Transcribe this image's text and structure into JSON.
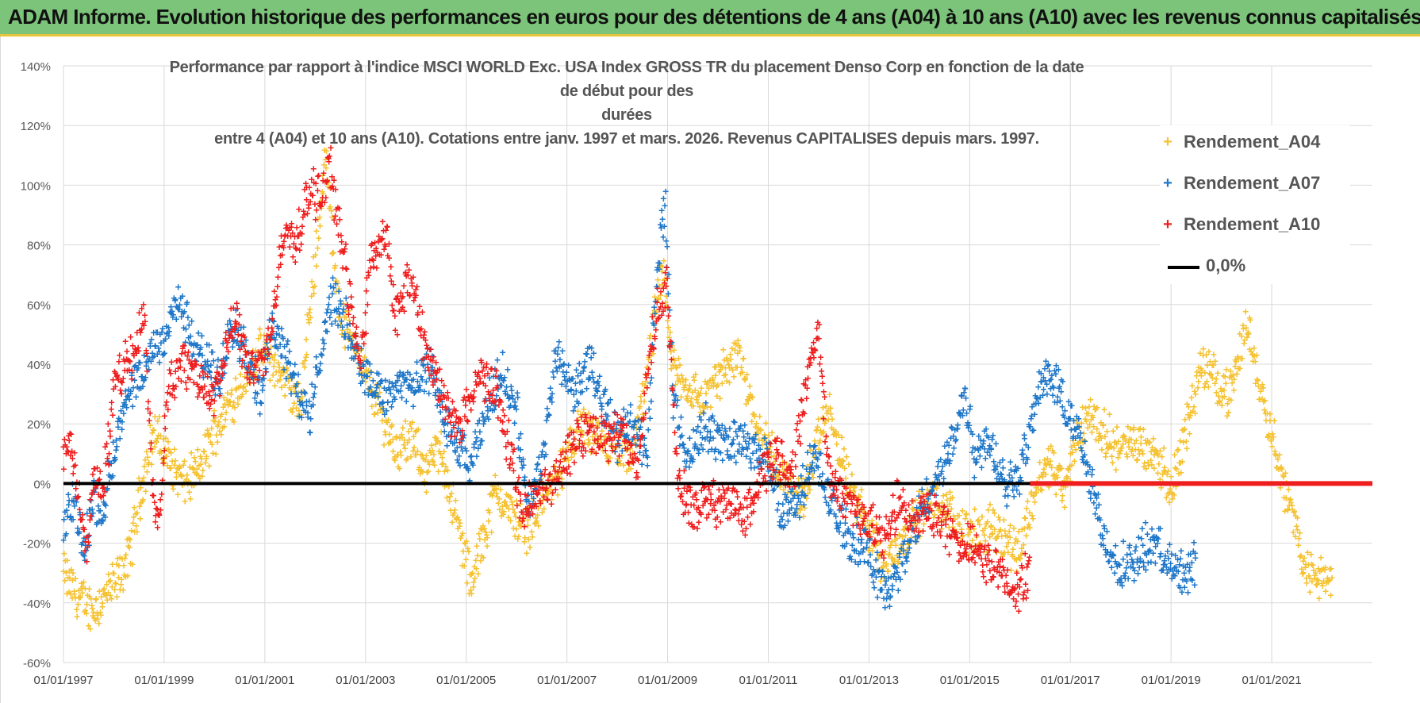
{
  "banner": {
    "title": "ADAM Informe. Evolution historique des performances en euros pour des détentions de 4 ans (A04) à 10 ans (A10) avec les revenus connus capitalisés"
  },
  "colors": {
    "A04": "#f5c232",
    "A07": "#1f77c8",
    "A10": "#ef1e1e",
    "zero": "#000000",
    "grid": "#d9d9d9",
    "banner": "#7cc47a"
  },
  "chart_data": {
    "type": "scatter",
    "title_lines": [
      "Performance par rapport à l'indice MSCI WORLD Exc. USA Index GROSS TR  du placement Denso Corp en fonction de la date de début pour des",
      "durées",
      "entre 4 (A04) et 10 ans (A10).  Cotations entre janv. 1997 et mars. 2026.  Revenus CAPITALISES depuis mars. 1997."
    ],
    "x_start": 1997.0,
    "x_end": 2023.0,
    "xlim": [
      1997.0,
      2023.0
    ],
    "ylim": [
      -60,
      140
    ],
    "x_ticks": [
      1997,
      1999,
      2001,
      2003,
      2005,
      2007,
      2009,
      2011,
      2013,
      2015,
      2017,
      2019,
      2021
    ],
    "x_tick_labels": [
      "01/01/1997",
      "01/01/1999",
      "01/01/2001",
      "01/01/2003",
      "01/01/2005",
      "01/01/2007",
      "01/01/2009",
      "01/01/2011",
      "01/01/2013",
      "01/01/2015",
      "01/01/2017",
      "01/01/2019",
      "01/01/2021"
    ],
    "y_ticks": [
      -60,
      -40,
      -20,
      0,
      20,
      40,
      60,
      80,
      100,
      120,
      140
    ],
    "y_tick_labels": [
      "-60%",
      "-40%",
      "-20%",
      "0%",
      "20%",
      "40%",
      "60%",
      "80%",
      "100%",
      "120%",
      "140%"
    ],
    "grid": true,
    "legend_position": "top-right",
    "reference_line": {
      "name": "0,0%",
      "y": 0
    },
    "series": [
      {
        "name": "Rendement_A04",
        "marker": "+",
        "x_end": 2022.2,
        "points": [
          [
            1997.0,
            -30
          ],
          [
            1997.3,
            -38
          ],
          [
            1997.6,
            -42
          ],
          [
            1998.0,
            -34
          ],
          [
            1998.3,
            -25
          ],
          [
            1998.5,
            -5
          ],
          [
            1998.8,
            18
          ],
          [
            1999.1,
            8
          ],
          [
            1999.4,
            0
          ],
          [
            1999.7,
            5
          ],
          [
            2000.0,
            18
          ],
          [
            2000.4,
            30
          ],
          [
            2000.8,
            42
          ],
          [
            2001.0,
            45
          ],
          [
            2001.4,
            35
          ],
          [
            2001.7,
            25
          ],
          [
            2002.0,
            75
          ],
          [
            2002.2,
            110
          ],
          [
            2002.5,
            55
          ],
          [
            2002.8,
            48
          ],
          [
            2003.0,
            35
          ],
          [
            2003.3,
            25
          ],
          [
            2003.6,
            12
          ],
          [
            2003.9,
            15
          ],
          [
            2004.2,
            5
          ],
          [
            2004.5,
            12
          ],
          [
            2004.8,
            -12
          ],
          [
            2005.0,
            -25
          ],
          [
            2005.1,
            -35
          ],
          [
            2005.3,
            -20
          ],
          [
            2005.6,
            -2
          ],
          [
            2005.9,
            -10
          ],
          [
            2006.2,
            -15
          ],
          [
            2006.5,
            -5
          ],
          [
            2006.8,
            2
          ],
          [
            2007.0,
            10
          ],
          [
            2007.3,
            20
          ],
          [
            2007.6,
            14
          ],
          [
            2007.9,
            12
          ],
          [
            2008.3,
            8
          ],
          [
            2008.6,
            40
          ],
          [
            2008.9,
            70
          ],
          [
            2009.1,
            40
          ],
          [
            2009.4,
            32
          ],
          [
            2009.7,
            28
          ],
          [
            2010.0,
            35
          ],
          [
            2010.4,
            45
          ],
          [
            2010.7,
            25
          ],
          [
            2011.0,
            12
          ],
          [
            2011.4,
            0
          ],
          [
            2011.7,
            -5
          ],
          [
            2012.0,
            15
          ],
          [
            2012.2,
            25
          ],
          [
            2012.5,
            5
          ],
          [
            2012.8,
            -8
          ],
          [
            2013.1,
            -18
          ],
          [
            2013.3,
            -28
          ],
          [
            2013.6,
            -20
          ],
          [
            2013.9,
            -12
          ],
          [
            2014.2,
            -5
          ],
          [
            2014.6,
            -10
          ],
          [
            2014.9,
            -15
          ],
          [
            2015.2,
            -18
          ],
          [
            2015.5,
            -14
          ],
          [
            2015.8,
            -20
          ],
          [
            2016.0,
            -22
          ],
          [
            2016.3,
            -2
          ],
          [
            2016.6,
            8
          ],
          [
            2016.9,
            -3
          ],
          [
            2017.1,
            15
          ],
          [
            2017.4,
            24
          ],
          [
            2017.7,
            16
          ],
          [
            2018.0,
            12
          ],
          [
            2018.4,
            14
          ],
          [
            2018.7,
            10
          ],
          [
            2019.0,
            -2
          ],
          [
            2019.3,
            18
          ],
          [
            2019.6,
            40
          ],
          [
            2019.9,
            35
          ],
          [
            2020.2,
            30
          ],
          [
            2020.5,
            55
          ],
          [
            2020.7,
            38
          ],
          [
            2021.0,
            18
          ],
          [
            2021.3,
            -5
          ],
          [
            2021.5,
            -15
          ],
          [
            2021.7,
            -30
          ],
          [
            2022.0,
            -32
          ],
          [
            2022.2,
            -33
          ]
        ]
      },
      {
        "name": "Rendement_A07",
        "marker": "+",
        "x_end": 2019.5,
        "points": [
          [
            1997.0,
            -15
          ],
          [
            1997.2,
            -5
          ],
          [
            1997.4,
            -22
          ],
          [
            1997.6,
            -5
          ],
          [
            1997.8,
            -8
          ],
          [
            1998.0,
            10
          ],
          [
            1998.2,
            25
          ],
          [
            1998.5,
            35
          ],
          [
            1998.8,
            45
          ],
          [
            1999.0,
            50
          ],
          [
            1999.3,
            62
          ],
          [
            1999.6,
            45
          ],
          [
            1999.9,
            40
          ],
          [
            2000.1,
            35
          ],
          [
            2000.3,
            55
          ],
          [
            2000.6,
            45
          ],
          [
            2000.9,
            30
          ],
          [
            2001.1,
            52
          ],
          [
            2001.3,
            50
          ],
          [
            2001.6,
            35
          ],
          [
            2001.9,
            20
          ],
          [
            2002.0,
            35
          ],
          [
            2002.3,
            62
          ],
          [
            2002.6,
            55
          ],
          [
            2002.9,
            40
          ],
          [
            2003.1,
            35
          ],
          [
            2003.4,
            28
          ],
          [
            2003.7,
            35
          ],
          [
            2004.0,
            32
          ],
          [
            2004.3,
            40
          ],
          [
            2004.6,
            20
          ],
          [
            2004.9,
            10
          ],
          [
            2005.1,
            5
          ],
          [
            2005.4,
            25
          ],
          [
            2005.7,
            38
          ],
          [
            2006.0,
            25
          ],
          [
            2006.2,
            -8
          ],
          [
            2006.5,
            5
          ],
          [
            2006.8,
            45
          ],
          [
            2007.1,
            30
          ],
          [
            2007.4,
            40
          ],
          [
            2007.7,
            30
          ],
          [
            2008.0,
            15
          ],
          [
            2008.3,
            22
          ],
          [
            2008.6,
            10
          ],
          [
            2008.8,
            75
          ],
          [
            2008.95,
            95
          ],
          [
            2009.1,
            30
          ],
          [
            2009.4,
            8
          ],
          [
            2009.7,
            20
          ],
          [
            2010.0,
            15
          ],
          [
            2010.3,
            15
          ],
          [
            2010.7,
            12
          ],
          [
            2011.0,
            8
          ],
          [
            2011.3,
            -10
          ],
          [
            2011.6,
            -5
          ],
          [
            2011.9,
            10
          ],
          [
            2012.2,
            -5
          ],
          [
            2012.6,
            -18
          ],
          [
            2012.9,
            -20
          ],
          [
            2013.1,
            -30
          ],
          [
            2013.4,
            -35
          ],
          [
            2013.7,
            -25
          ],
          [
            2014.0,
            -10
          ],
          [
            2014.3,
            0
          ],
          [
            2014.6,
            10
          ],
          [
            2014.9,
            30
          ],
          [
            2015.1,
            10
          ],
          [
            2015.4,
            15
          ],
          [
            2015.7,
            0
          ],
          [
            2016.0,
            5
          ],
          [
            2016.3,
            25
          ],
          [
            2016.5,
            38
          ],
          [
            2016.8,
            30
          ],
          [
            2017.1,
            20
          ],
          [
            2017.4,
            0
          ],
          [
            2017.7,
            -20
          ],
          [
            2018.0,
            -28
          ],
          [
            2018.3,
            -25
          ],
          [
            2018.6,
            -20
          ],
          [
            2018.9,
            -25
          ],
          [
            2019.2,
            -30
          ],
          [
            2019.5,
            -25
          ]
        ]
      },
      {
        "name": "Rendement_A10",
        "marker": "+",
        "x_end": 2016.2,
        "points": [
          [
            1997.0,
            5
          ],
          [
            1997.15,
            15
          ],
          [
            1997.3,
            -5
          ],
          [
            1997.45,
            -22
          ],
          [
            1997.6,
            0
          ],
          [
            1997.8,
            0
          ],
          [
            1998.0,
            30
          ],
          [
            1998.2,
            40
          ],
          [
            1998.4,
            42
          ],
          [
            1998.6,
            60
          ],
          [
            1998.8,
            -10
          ],
          [
            1998.9,
            -12
          ],
          [
            1999.1,
            35
          ],
          [
            1999.4,
            40
          ],
          [
            1999.7,
            35
          ],
          [
            2000.0,
            30
          ],
          [
            2000.4,
            55
          ],
          [
            2000.7,
            38
          ],
          [
            2001.0,
            42
          ],
          [
            2001.2,
            60
          ],
          [
            2001.4,
            85
          ],
          [
            2001.6,
            80
          ],
          [
            2001.9,
            100
          ],
          [
            2002.1,
            95
          ],
          [
            2002.3,
            105
          ],
          [
            2002.5,
            85
          ],
          [
            2002.7,
            60
          ],
          [
            2002.9,
            40
          ],
          [
            2003.1,
            75
          ],
          [
            2003.4,
            85
          ],
          [
            2003.6,
            55
          ],
          [
            2003.9,
            70
          ],
          [
            2004.2,
            45
          ],
          [
            2004.5,
            30
          ],
          [
            2004.8,
            20
          ],
          [
            2005.1,
            28
          ],
          [
            2005.3,
            38
          ],
          [
            2005.6,
            30
          ],
          [
            2005.9,
            10
          ],
          [
            2006.1,
            -10
          ],
          [
            2006.3,
            -5
          ],
          [
            2006.6,
            0
          ],
          [
            2006.9,
            5
          ],
          [
            2007.2,
            15
          ],
          [
            2007.5,
            18
          ],
          [
            2007.8,
            15
          ],
          [
            2008.1,
            18
          ],
          [
            2008.4,
            5
          ],
          [
            2008.6,
            35
          ],
          [
            2008.8,
            60
          ],
          [
            2009.0,
            65
          ],
          [
            2009.2,
            0
          ],
          [
            2009.5,
            -10
          ],
          [
            2009.8,
            -5
          ],
          [
            2010.0,
            -8
          ],
          [
            2010.3,
            -5
          ],
          [
            2010.6,
            -10
          ],
          [
            2010.9,
            5
          ],
          [
            2011.2,
            10
          ],
          [
            2011.5,
            5
          ],
          [
            2011.8,
            40
          ],
          [
            2012.0,
            50
          ],
          [
            2012.2,
            5
          ],
          [
            2012.5,
            -5
          ],
          [
            2012.8,
            -8
          ],
          [
            2013.1,
            -15
          ],
          [
            2013.3,
            -20
          ],
          [
            2013.6,
            -5
          ],
          [
            2013.9,
            -15
          ],
          [
            2014.1,
            -8
          ],
          [
            2014.4,
            -12
          ],
          [
            2014.7,
            -18
          ],
          [
            2015.0,
            -22
          ],
          [
            2015.3,
            -25
          ],
          [
            2015.6,
            -30
          ],
          [
            2015.9,
            -36
          ],
          [
            2016.2,
            -30
          ]
        ]
      }
    ]
  },
  "legend": {
    "items": [
      {
        "label": "Rendement_A04"
      },
      {
        "label": "Rendement_A07"
      },
      {
        "label": "Rendement_A10"
      },
      {
        "label": "0,0%"
      }
    ]
  }
}
